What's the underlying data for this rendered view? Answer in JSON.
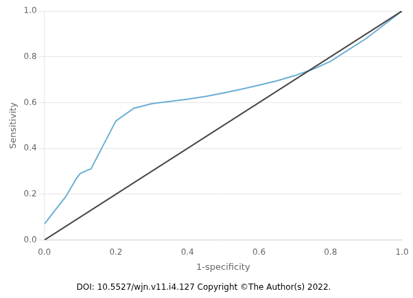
{
  "chart_data": {
    "type": "line",
    "xlabel": "1-specificity",
    "ylabel": "Sensitivity",
    "annotation": "DOI: 10.5527/wjn.v11.i4.127 Copyright ©The Author(s) 2022.",
    "series": [
      {
        "color": "#444444",
        "x": [
          0.0,
          1.0
        ],
        "values": [
          0.0,
          1.0
        ]
      },
      {
        "color": "#6baed6",
        "x": [
          0.0,
          0.01,
          0.03,
          0.06,
          0.09,
          0.1,
          0.12,
          0.13,
          0.16,
          0.2,
          0.25,
          0.3,
          0.35,
          0.4,
          0.45,
          0.5,
          0.55,
          0.6,
          0.65,
          0.7,
          0.75,
          0.8,
          0.85,
          0.9,
          1.0
        ],
        "values": [
          0.07,
          0.09,
          0.13,
          0.19,
          0.27,
          0.29,
          0.305,
          0.31,
          0.4,
          0.52,
          0.575,
          0.595,
          0.605,
          0.615,
          0.627,
          0.642,
          0.658,
          0.676,
          0.695,
          0.718,
          0.745,
          0.78,
          0.83,
          0.88,
          1.0
        ]
      }
    ],
    "xlim": [
      0.0,
      1.0
    ],
    "ylim": [
      0.0,
      1.0
    ],
    "xticks": [
      {
        "value": 0.0,
        "label": "0.0"
      },
      0.2,
      0.4,
      0.6,
      0.8,
      {
        "value": 1.0,
        "label": "1.0"
      }
    ],
    "yticks": [
      {
        "value": 0.0,
        "label": "0.0"
      },
      0.2,
      0.4,
      0.6,
      0.8,
      {
        "value": 1.0,
        "label": "1.0"
      }
    ],
    "grid": "y"
  }
}
